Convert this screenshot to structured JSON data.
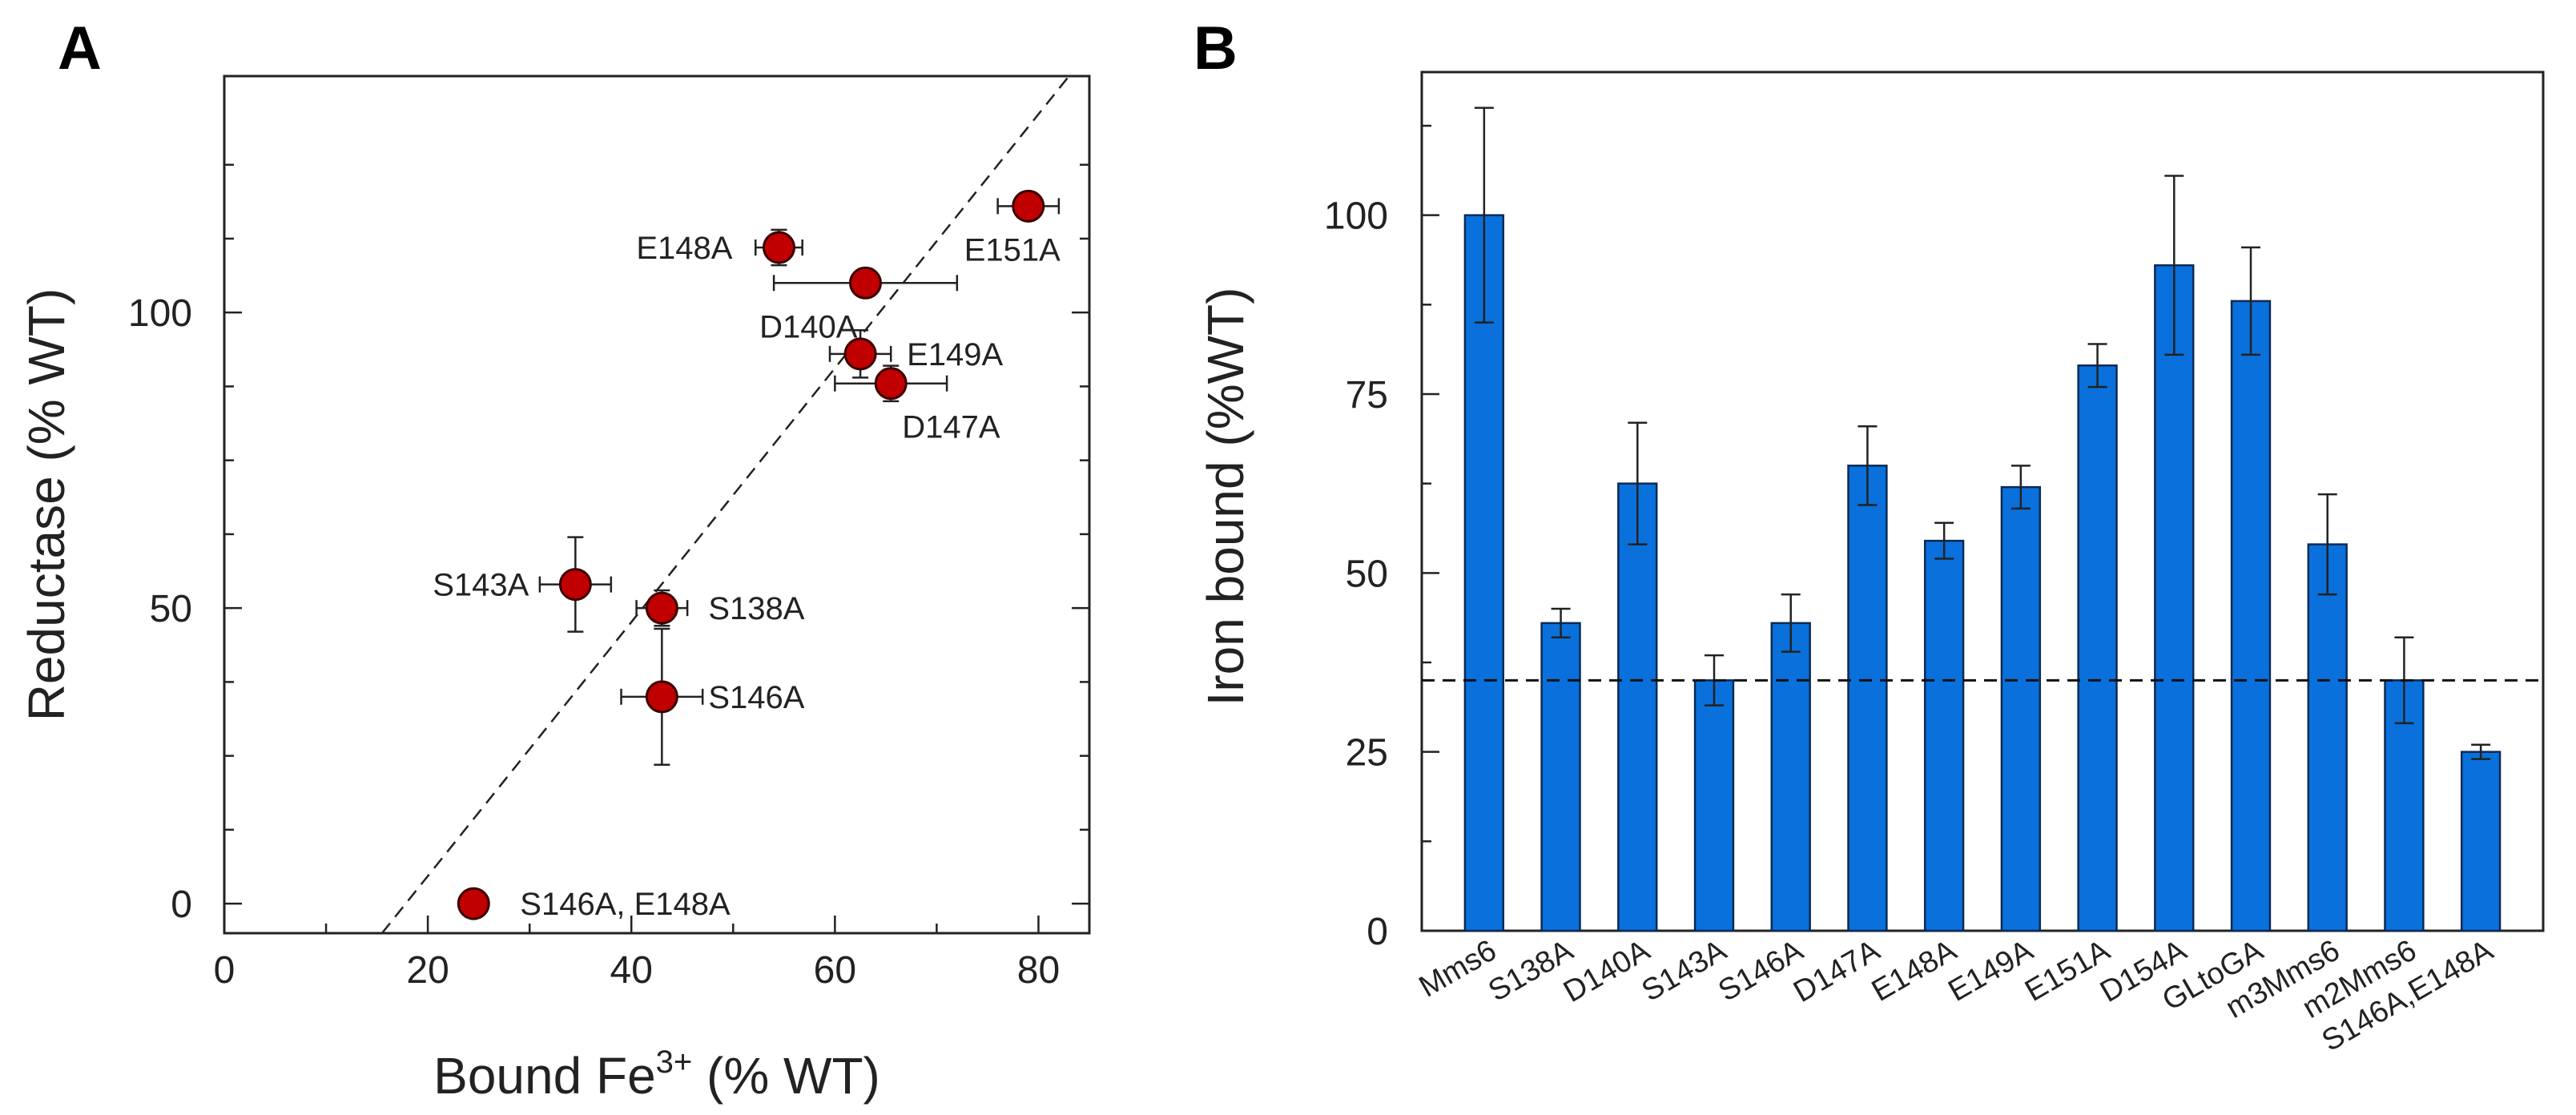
{
  "panels": {
    "a_letter": "A",
    "b_letter": "B"
  },
  "chart_data": [
    {
      "type": "scatter",
      "panel": "A",
      "xlabel": "Bound Fe",
      "xlabel_superscript": "3+",
      "xlabel_suffix": " (% WT)",
      "ylabel": "Reductase (% WT)",
      "xlim": [
        0,
        85
      ],
      "ylim": [
        -5,
        140
      ],
      "xticks": [
        0,
        20,
        40,
        60,
        80
      ],
      "yticks": [
        0,
        50,
        100
      ],
      "marker_color": "#c00000",
      "trendline": {
        "style": "dashed",
        "from": [
          15.5,
          -5
        ],
        "to": [
          83,
          140
        ]
      },
      "points": [
        {
          "label": "E148A",
          "x": 54.5,
          "y": 111,
          "xerr": 2.3,
          "yerr": 3
        },
        {
          "label": "D140A",
          "x": 63,
          "y": 105,
          "xerr": 9,
          "yerr": 0
        },
        {
          "label": "E151A",
          "x": 79,
          "y": 118,
          "xerr": 3,
          "yerr": 0
        },
        {
          "label": "E149A",
          "x": 62.5,
          "y": 93,
          "xerr": 3,
          "yerr": 4
        },
        {
          "label": "D147A",
          "x": 65.5,
          "y": 88,
          "xerr": 5.5,
          "yerr": 3
        },
        {
          "label": "S143A",
          "x": 34.5,
          "y": 54,
          "xerr": 3.5,
          "yerr": 8
        },
        {
          "label": "S138A",
          "x": 43,
          "y": 50,
          "xerr": 2.5,
          "yerr": 3
        },
        {
          "label": "S146A",
          "x": 43,
          "y": 35,
          "xerr": 4,
          "yerr": 11.5
        },
        {
          "label": "S146A, E148A",
          "x": 24.5,
          "y": 0,
          "xerr": 0,
          "yerr": 0
        }
      ]
    },
    {
      "type": "bar",
      "panel": "B",
      "ylabel": "Iron bound (%WT)",
      "ylim": [
        0,
        120
      ],
      "yticks": [
        0,
        25,
        50,
        75,
        100
      ],
      "bar_color": "#0a70dc",
      "reference_line": {
        "y": 35,
        "style": "dashed"
      },
      "categories": [
        "Mms6",
        "S138A",
        "D140A",
        "S143A",
        "S146A",
        "D147A",
        "E148A",
        "E149A",
        "E151A",
        "D154A",
        "GLtoGA",
        "m3Mms6",
        "m2Mms6",
        "S146A,E148A"
      ],
      "values": [
        100,
        43,
        62.5,
        35,
        43,
        65,
        54.5,
        62,
        79,
        93,
        88,
        54,
        35,
        25
      ],
      "errors": [
        15,
        2,
        8.5,
        3.5,
        4,
        5.5,
        2.5,
        3,
        3,
        12.5,
        7.5,
        7,
        6,
        1
      ]
    }
  ]
}
